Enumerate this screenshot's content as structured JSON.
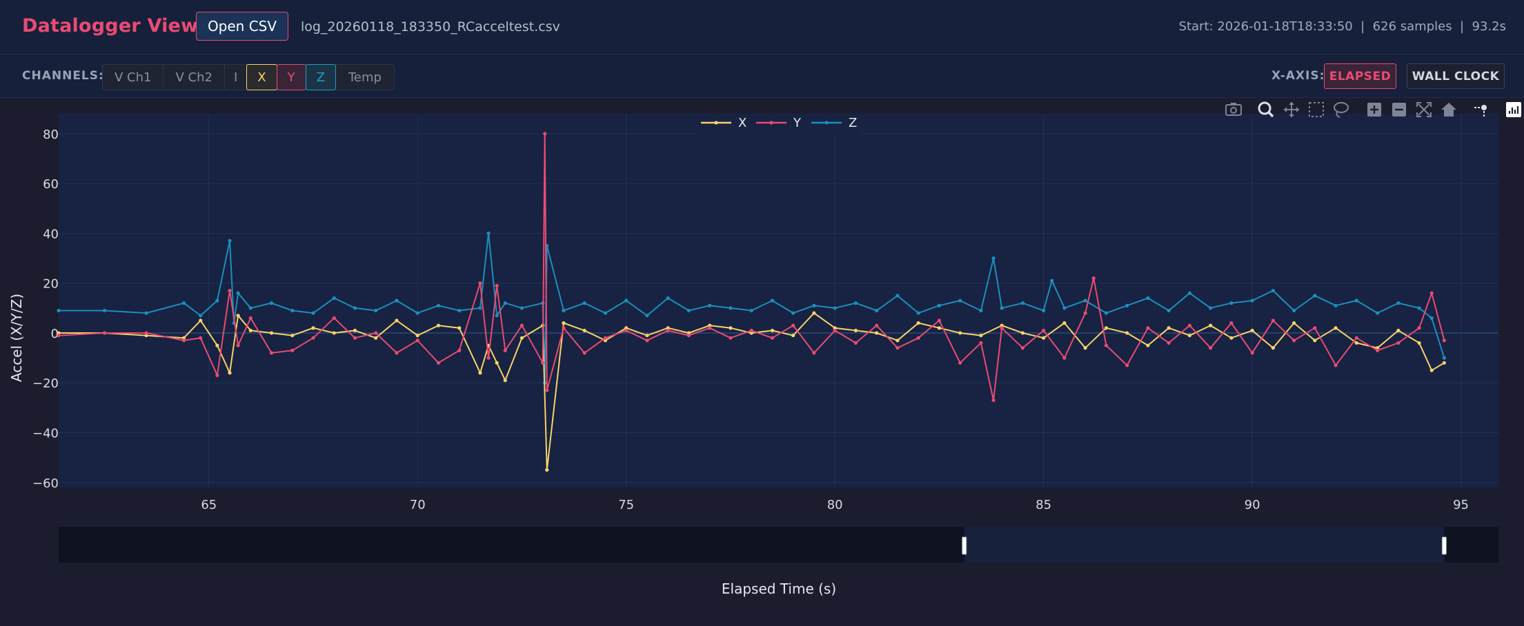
{
  "header": {
    "title": "Datalogger Viewer",
    "open_label": "Open CSV",
    "file_name": "log_20260118_183350_RCacceltest.csv",
    "info": "Start: 2026-01-18T18:33:50  |  626 samples  |  93.2s"
  },
  "toolbar": {
    "channels_label": "CHANNELS:",
    "channels": [
      {
        "label": "V Ch1",
        "active": false
      },
      {
        "label": "V Ch2",
        "active": false
      },
      {
        "label": "I",
        "active": false
      },
      {
        "label": "X",
        "active": true
      },
      {
        "label": "Y",
        "active": true
      },
      {
        "label": "Z",
        "active": true
      },
      {
        "label": "Temp",
        "active": false
      }
    ],
    "xaxis_label": "X-AXIS:",
    "xaxis_options": [
      "ELAPSED",
      "WALL CLOCK"
    ],
    "xaxis_selected": "ELAPSED"
  },
  "modebar": [
    "camera-icon",
    "zoom-icon",
    "pan-icon",
    "box-select-icon",
    "lasso-icon",
    "zoom-in-icon",
    "zoom-out-icon",
    "autoscale-icon",
    "home-icon",
    "spike-lines-icon",
    "plotly-logo-icon"
  ],
  "colors": {
    "x": "#f7d468",
    "y": "#e94b73",
    "z": "#1a90bd",
    "accent": "#e94b73"
  },
  "chart_data": {
    "type": "line",
    "xlabel": "Elapsed Time (s)",
    "ylabel": "Accel (X/Y/Z)",
    "xlim": [
      61.4,
      95.9
    ],
    "ylim": [
      -62,
      88
    ],
    "xticks": [
      65,
      70,
      75,
      80,
      85,
      90,
      95
    ],
    "yticks": [
      -60,
      -40,
      -20,
      0,
      20,
      40,
      60,
      80
    ],
    "legend": [
      "X",
      "Y",
      "Z"
    ],
    "legend_position": "top-center",
    "grid": true,
    "rangeslider": {
      "full_range": [
        61.4,
        95.9
      ],
      "selected": [
        83.1,
        94.6
      ]
    },
    "series": [
      {
        "name": "X",
        "x": [
          61.4,
          62.5,
          63.5,
          64.4,
          64.8,
          65.2,
          65.5,
          65.7,
          66.0,
          66.5,
          67.0,
          67.5,
          68.0,
          68.5,
          69.0,
          69.5,
          70.0,
          70.5,
          71.0,
          71.5,
          71.7,
          71.9,
          72.1,
          72.5,
          73.0,
          73.1,
          73.5,
          74.0,
          74.5,
          75.0,
          75.5,
          76.0,
          76.5,
          77.0,
          77.5,
          78.0,
          78.5,
          79.0,
          79.5,
          80.0,
          80.5,
          81.0,
          81.5,
          82.0,
          82.5,
          83.0,
          83.5,
          84.0,
          84.5,
          85.0,
          85.5,
          86.0,
          86.5,
          87.0,
          87.5,
          88.0,
          88.5,
          89.0,
          89.5,
          90.0,
          90.5,
          91.0,
          91.5,
          92.0,
          92.5,
          93.0,
          93.5,
          94.0,
          94.3,
          94.6
        ],
        "values": [
          0,
          0,
          -1,
          -2,
          5,
          -5,
          -16,
          7,
          1,
          0,
          -1,
          2,
          0,
          1,
          -2,
          5,
          -1,
          3,
          2,
          -16,
          -5,
          -12,
          -19,
          -2,
          3,
          -55,
          4,
          1,
          -3,
          2,
          -1,
          2,
          0,
          3,
          2,
          0,
          1,
          -1,
          8,
          2,
          1,
          0,
          -3,
          4,
          2,
          0,
          -1,
          3,
          0,
          -2,
          4,
          -6,
          2,
          0,
          -5,
          2,
          -1,
          3,
          -2,
          1,
          -6,
          4,
          -3,
          2,
          -4,
          -6,
          1,
          -4,
          -15,
          -12
        ]
      },
      {
        "name": "Y",
        "x": [
          61.4,
          62.5,
          63.5,
          64.4,
          64.8,
          65.2,
          65.5,
          65.7,
          66.0,
          66.5,
          67.0,
          67.5,
          68.0,
          68.5,
          69.0,
          69.5,
          70.0,
          70.5,
          71.0,
          71.5,
          71.7,
          71.9,
          72.1,
          72.5,
          73.0,
          73.05,
          73.1,
          73.5,
          74.0,
          74.5,
          75.0,
          75.5,
          76.0,
          76.5,
          77.0,
          77.5,
          78.0,
          78.5,
          79.0,
          79.5,
          80.0,
          80.5,
          81.0,
          81.5,
          82.0,
          82.5,
          83.0,
          83.5,
          83.8,
          84.0,
          84.5,
          85.0,
          85.5,
          86.0,
          86.2,
          86.5,
          87.0,
          87.5,
          88.0,
          88.5,
          89.0,
          89.5,
          90.0,
          90.5,
          91.0,
          91.5,
          92.0,
          92.5,
          93.0,
          93.5,
          94.0,
          94.3,
          94.6
        ],
        "values": [
          -1,
          0,
          0,
          -3,
          -2,
          -17,
          17,
          -5,
          6,
          -8,
          -7,
          -2,
          6,
          -2,
          0,
          -8,
          -3,
          -12,
          -7,
          20,
          -10,
          19,
          -7,
          3,
          -12,
          80,
          -23,
          2,
          -8,
          -2,
          1,
          -3,
          1,
          -1,
          2,
          -2,
          1,
          -2,
          3,
          -8,
          1,
          -4,
          3,
          -6,
          -2,
          5,
          -12,
          -4,
          -27,
          2,
          -6,
          1,
          -10,
          8,
          22,
          -5,
          -13,
          2,
          -4,
          3,
          -6,
          4,
          -8,
          5,
          -3,
          2,
          -13,
          -2,
          -7,
          -4,
          2,
          16,
          -3
        ]
      },
      {
        "name": "Z",
        "x": [
          61.4,
          62.5,
          63.5,
          64.4,
          64.8,
          65.2,
          65.5,
          65.6,
          65.7,
          66.0,
          66.5,
          67.0,
          67.5,
          68.0,
          68.5,
          69.0,
          69.5,
          70.0,
          70.5,
          71.0,
          71.5,
          71.7,
          71.9,
          72.1,
          72.5,
          73.0,
          73.05,
          73.1,
          73.5,
          74.0,
          74.5,
          75.0,
          75.5,
          76.0,
          76.5,
          77.0,
          77.5,
          78.0,
          78.5,
          79.0,
          79.5,
          80.0,
          80.5,
          81.0,
          81.5,
          82.0,
          82.5,
          83.0,
          83.5,
          83.8,
          84.0,
          84.5,
          85.0,
          85.2,
          85.5,
          86.0,
          86.5,
          87.0,
          87.5,
          88.0,
          88.5,
          89.0,
          89.5,
          90.0,
          90.5,
          91.0,
          91.5,
          92.0,
          92.5,
          93.0,
          93.5,
          94.0,
          94.3,
          94.6
        ],
        "values": [
          9,
          9,
          8,
          12,
          7,
          13,
          37,
          4,
          16,
          10,
          12,
          9,
          8,
          14,
          10,
          9,
          13,
          8,
          11,
          9,
          10,
          40,
          7,
          12,
          10,
          12,
          -20,
          35,
          9,
          12,
          8,
          13,
          7,
          14,
          9,
          11,
          10,
          9,
          13,
          8,
          11,
          10,
          12,
          9,
          15,
          8,
          11,
          13,
          9,
          30,
          10,
          12,
          9,
          21,
          10,
          13,
          8,
          11,
          14,
          9,
          16,
          10,
          12,
          13,
          17,
          9,
          15,
          11,
          13,
          8,
          12,
          10,
          6,
          -10
        ]
      }
    ]
  }
}
